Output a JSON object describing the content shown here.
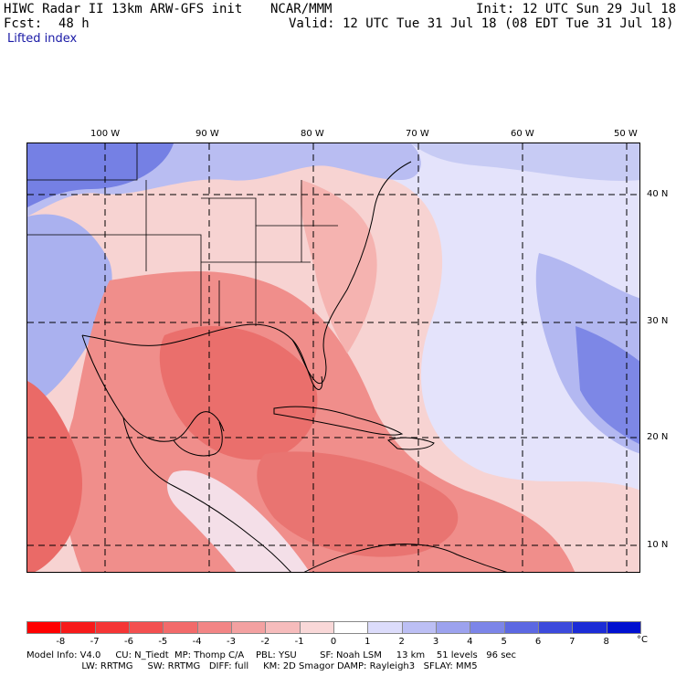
{
  "header": {
    "title": "HIWC Radar II 13km ARW-GFS init",
    "org": "NCAR/MMM",
    "init": "Init: 12 UTC Sun 29 Jul 18",
    "fcst_label": "Fcst:",
    "fcst_value": "48 h",
    "valid": "Valid: 12 UTC Tue 31 Jul 18 (08 EDT Tue 31 Jul 18)",
    "field": "Lifted index"
  },
  "map": {
    "lon_labels": [
      "100 W",
      "90 W",
      "80 W",
      "70 W",
      "60 W",
      "50 W"
    ],
    "lat_labels": [
      "40 N",
      "30 N",
      "20 N",
      "10 N"
    ],
    "colors": {
      "warm_light": "#f7c9c4",
      "warm_mid": "#f08a86",
      "cool_light": "#c9cdf5",
      "cool_mid": "#8f98ea",
      "cool_dark": "#4f5cd8",
      "neutral": "#f4e9f0"
    }
  },
  "colorbar": {
    "labels": [
      "-8",
      "-7",
      "-6",
      "-5",
      "-4",
      "-3",
      "-2",
      "-1",
      "0",
      "1",
      "2",
      "3",
      "4",
      "5",
      "6",
      "7",
      "8"
    ],
    "unit": "°C",
    "colors": [
      "#ff0000",
      "#f71a1a",
      "#f53535",
      "#f35050",
      "#f26a6a",
      "#f28585",
      "#f3a1a1",
      "#f6bcbc",
      "#f9d8d8",
      "#ffffff",
      "#dcdcfb",
      "#bcbff4",
      "#9ca2ee",
      "#7c85e8",
      "#5c68e2",
      "#3c4adc",
      "#1c2cd6",
      "#0010d0"
    ]
  },
  "footer": {
    "line1": "Model Info: V4.0     CU: N_Tiedt  MP: Thomp C/A    PBL: YSU        SF: Noah LSM     13 km    51 levels   96 sec",
    "line2": "                   LW: RRTMG     SW: RRTMG   DIFF: full     KM: 2D Smagor DAMP: Rayleigh3   SFLAY: MM5"
  }
}
